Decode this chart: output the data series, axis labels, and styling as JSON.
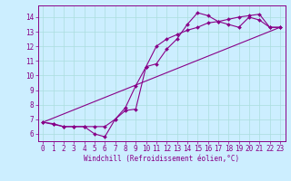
{
  "xlabel": "Windchill (Refroidissement éolien,°C)",
  "bg_color": "#cceeff",
  "line_color": "#880088",
  "grid_color": "#aadddd",
  "xlim": [
    -0.5,
    23.5
  ],
  "ylim": [
    5.5,
    14.8
  ],
  "yticks": [
    6,
    7,
    8,
    9,
    10,
    11,
    12,
    13,
    14
  ],
  "xticks": [
    0,
    1,
    2,
    3,
    4,
    5,
    6,
    7,
    8,
    9,
    10,
    11,
    12,
    13,
    14,
    15,
    16,
    17,
    18,
    19,
    20,
    21,
    22,
    23
  ],
  "series1_x": [
    0,
    1,
    2,
    3,
    4,
    5,
    6,
    7,
    8,
    9,
    10,
    11,
    12,
    13,
    14,
    15,
    16,
    17,
    18,
    19,
    20,
    21,
    22,
    23
  ],
  "series1_y": [
    6.8,
    6.65,
    6.5,
    6.5,
    6.5,
    6.5,
    6.5,
    7.0,
    7.8,
    9.3,
    10.6,
    12.0,
    12.5,
    12.8,
    13.1,
    13.3,
    13.6,
    13.7,
    13.85,
    14.0,
    14.1,
    14.2,
    13.3,
    13.3
  ],
  "series2_x": [
    0,
    23
  ],
  "series2_y": [
    6.8,
    13.3
  ],
  "series3_x": [
    0,
    1,
    2,
    3,
    4,
    5,
    6,
    7,
    8,
    9,
    10,
    11,
    12,
    13,
    14,
    15,
    16,
    17,
    18,
    19,
    20,
    21,
    22,
    23
  ],
  "series3_y": [
    6.8,
    6.7,
    6.5,
    6.5,
    6.5,
    6.0,
    5.8,
    7.0,
    7.6,
    7.7,
    10.6,
    10.8,
    11.8,
    12.5,
    13.5,
    14.3,
    14.1,
    13.7,
    13.5,
    13.3,
    14.0,
    13.8,
    13.3,
    13.3
  ],
  "markersize": 2.0,
  "linewidth": 0.8,
  "tick_labelsize": 5.5,
  "xlabel_fontsize": 5.5
}
